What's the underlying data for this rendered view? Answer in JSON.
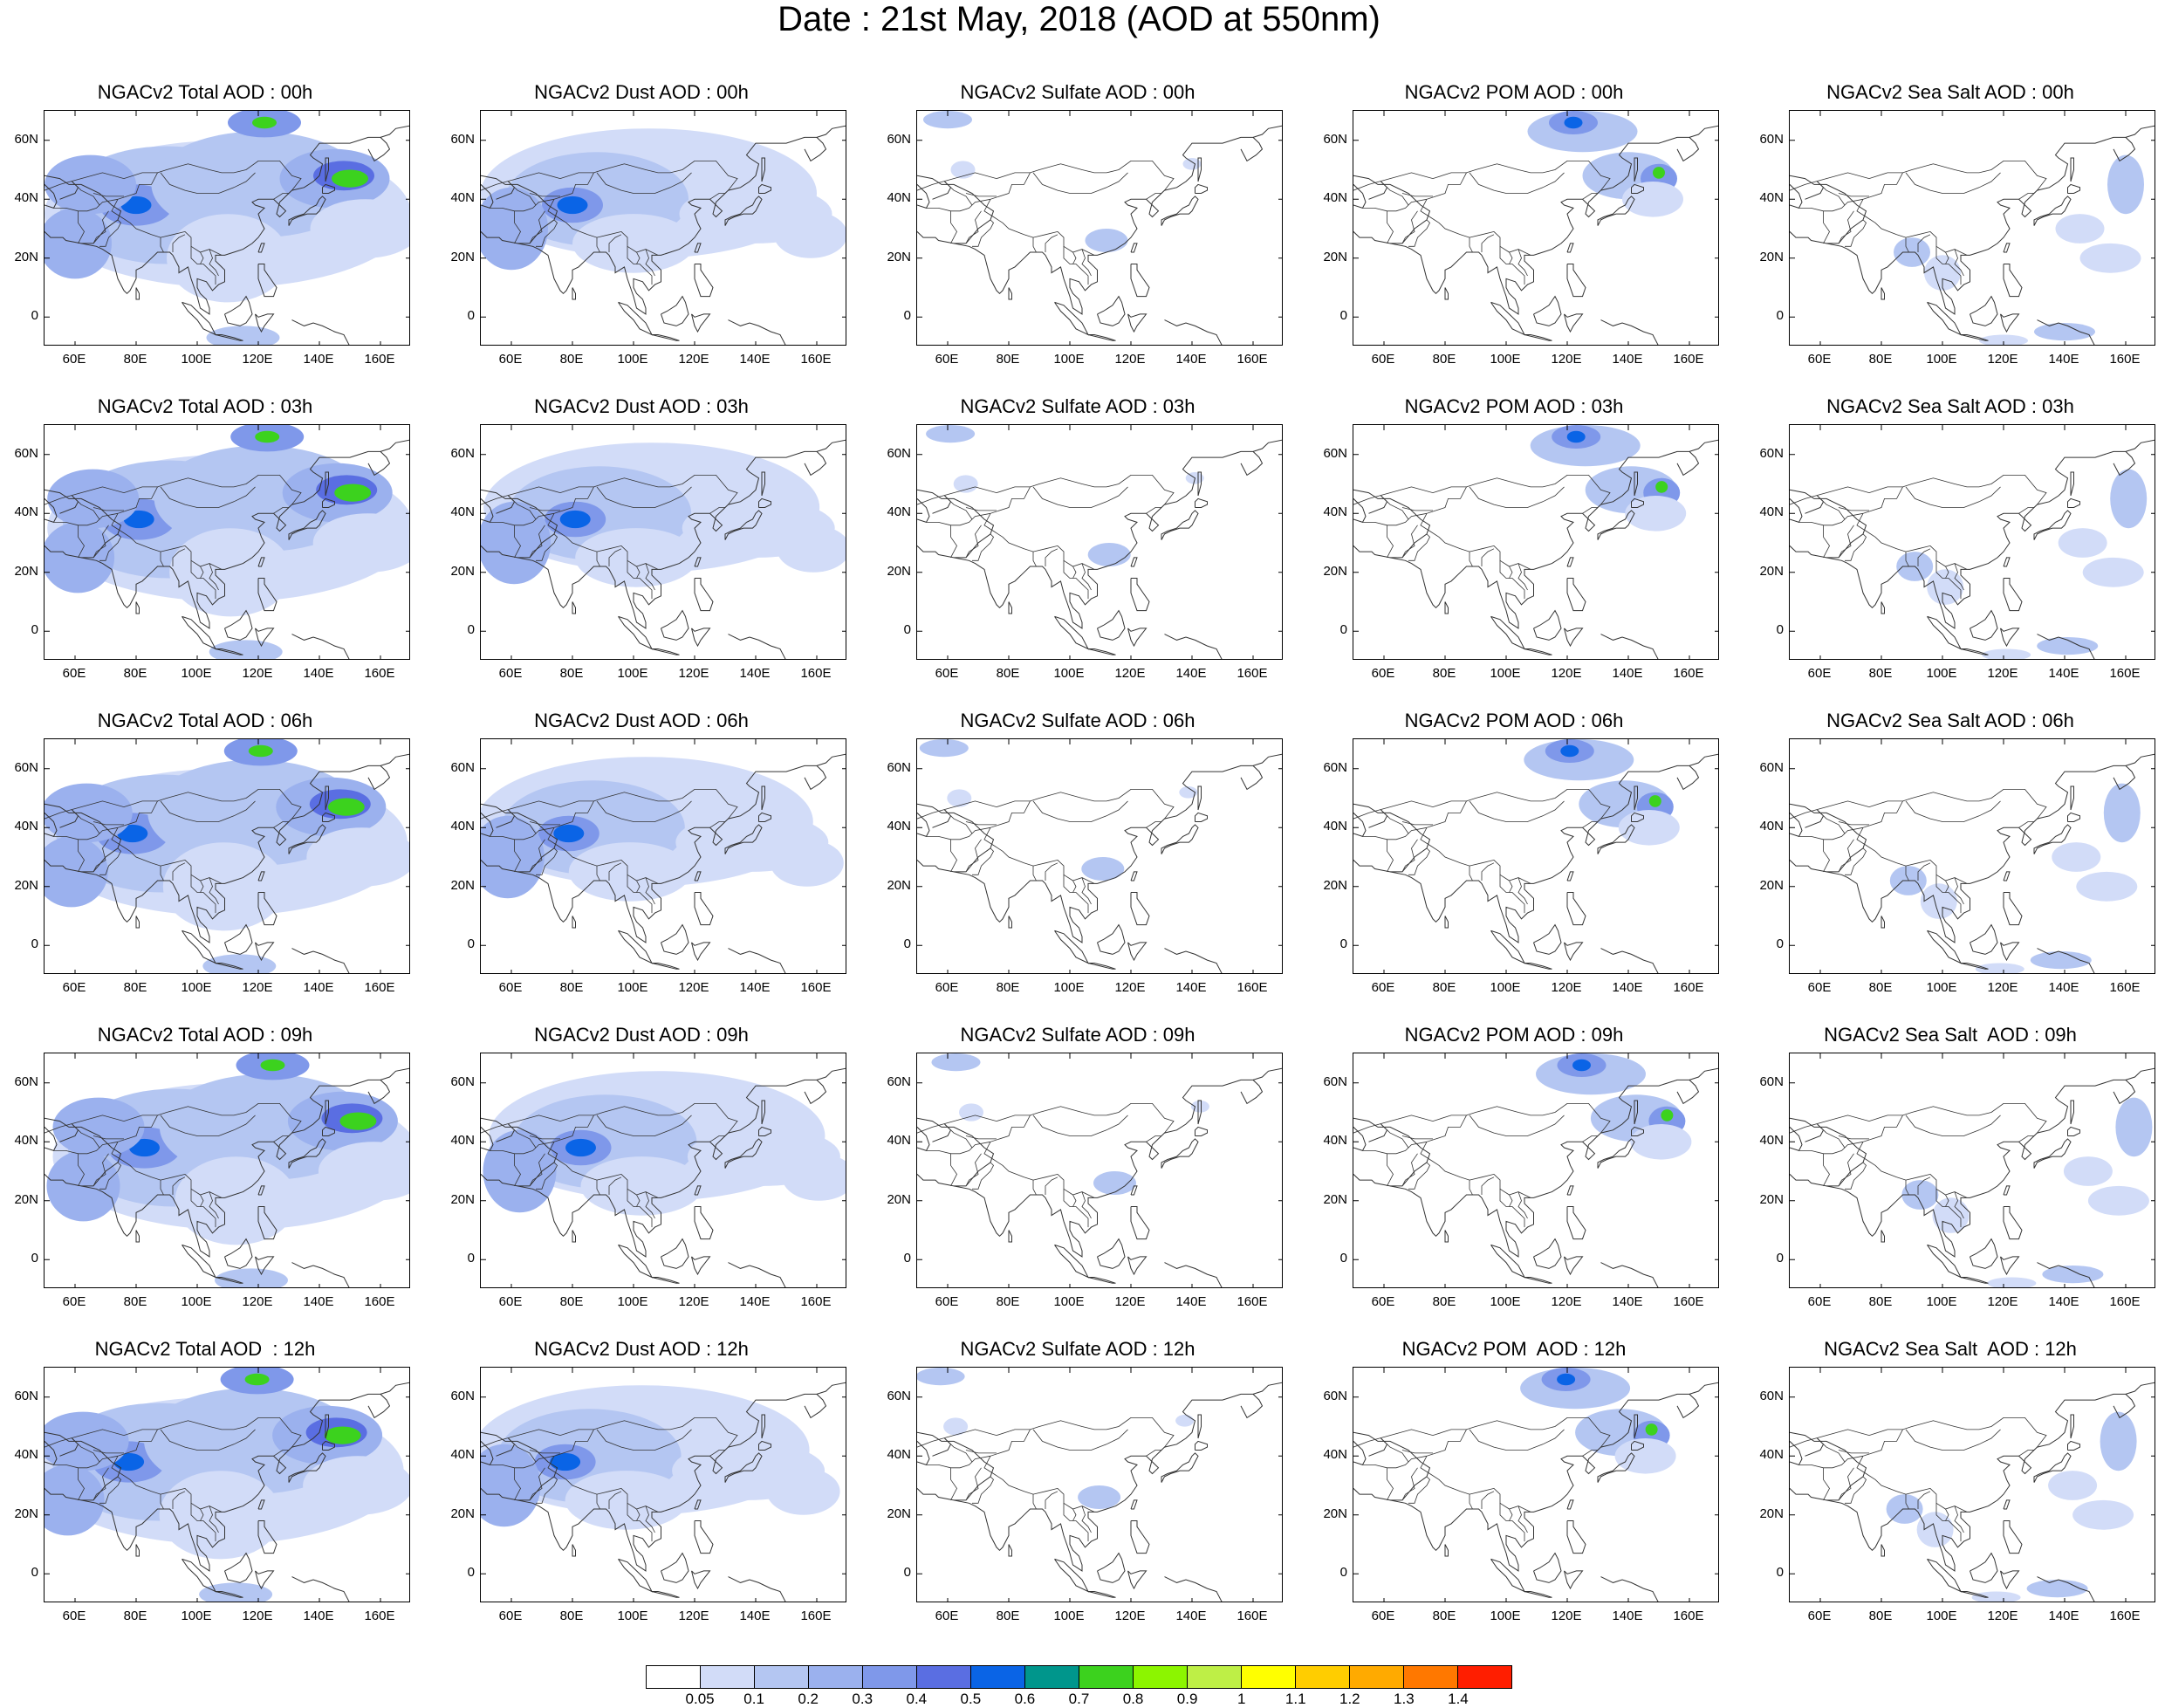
{
  "title": "Date : 21st May, 2018 (AOD at 550nm)",
  "axes": {
    "lat_ticks": [
      "60N",
      "40N",
      "20N",
      "0"
    ],
    "lat_values": [
      60,
      40,
      20,
      0
    ],
    "lon_ticks": [
      "60E",
      "80E",
      "100E",
      "120E",
      "140E",
      "160E"
    ],
    "lon_values": [
      60,
      80,
      100,
      120,
      140,
      160
    ],
    "lon_range": [
      50,
      170
    ],
    "lat_range": [
      -10,
      70
    ]
  },
  "panels": [
    {
      "title": "NGACv2 Total AOD : 00h",
      "species": "total",
      "hour": "00h"
    },
    {
      "title": "NGACv2 Dust AOD : 00h",
      "species": "dust",
      "hour": "00h"
    },
    {
      "title": "NGACv2 Sulfate AOD : 00h",
      "species": "sulfate",
      "hour": "00h"
    },
    {
      "title": "NGACv2 POM AOD : 00h",
      "species": "pom",
      "hour": "00h"
    },
    {
      "title": "NGACv2 Sea Salt AOD : 00h",
      "species": "seasalt",
      "hour": "00h"
    },
    {
      "title": "NGACv2 Total AOD : 03h",
      "species": "total",
      "hour": "03h"
    },
    {
      "title": "NGACv2 Dust AOD : 03h",
      "species": "dust",
      "hour": "03h"
    },
    {
      "title": "NGACv2 Sulfate AOD : 03h",
      "species": "sulfate",
      "hour": "03h"
    },
    {
      "title": "NGACv2 POM AOD : 03h",
      "species": "pom",
      "hour": "03h"
    },
    {
      "title": "NGACv2 Sea Salt AOD : 03h",
      "species": "seasalt",
      "hour": "03h"
    },
    {
      "title": "NGACv2 Total AOD : 06h",
      "species": "total",
      "hour": "06h"
    },
    {
      "title": "NGACv2 Dust AOD : 06h",
      "species": "dust",
      "hour": "06h"
    },
    {
      "title": "NGACv2 Sulfate AOD : 06h",
      "species": "sulfate",
      "hour": "06h"
    },
    {
      "title": "NGACv2 POM AOD : 06h",
      "species": "pom",
      "hour": "06h"
    },
    {
      "title": "NGACv2 Sea Salt AOD : 06h",
      "species": "seasalt",
      "hour": "06h"
    },
    {
      "title": "NGACv2 Total AOD : 09h",
      "species": "total",
      "hour": "09h"
    },
    {
      "title": "NGACv2 Dust AOD : 09h",
      "species": "dust",
      "hour": "09h"
    },
    {
      "title": "NGACv2 Sulfate AOD : 09h",
      "species": "sulfate",
      "hour": "09h"
    },
    {
      "title": "NGACv2 POM AOD : 09h",
      "species": "pom",
      "hour": "09h"
    },
    {
      "title": "NGACv2 Sea Salt  AOD : 09h",
      "species": "seasalt",
      "hour": "09h"
    },
    {
      "title": "NGACv2 Total AOD  : 12h",
      "species": "total",
      "hour": "12h"
    },
    {
      "title": "NGACv2 Dust AOD : 12h",
      "species": "dust",
      "hour": "12h"
    },
    {
      "title": "NGACv2 Sulfate AOD : 12h",
      "species": "sulfate",
      "hour": "12h"
    },
    {
      "title": "NGACv2 POM  AOD : 12h",
      "species": "pom",
      "hour": "12h"
    },
    {
      "title": "NGACv2 Sea Salt  AOD : 12h",
      "species": "seasalt",
      "hour": "12h"
    }
  ],
  "colorbar": {
    "labels": [
      "0.05",
      "0.1",
      "0.2",
      "0.3",
      "0.4",
      "0.5",
      "0.6",
      "0.7",
      "0.8",
      "0.9",
      "1",
      "1.1",
      "1.2",
      "1.3",
      "1.4"
    ],
    "colors": [
      "#ffffff",
      "#d2dcf8",
      "#b4c6f2",
      "#9bb1ee",
      "#7f98ea",
      "#5a6ee2",
      "#0a64e6",
      "#00968c",
      "#3cd21e",
      "#8cf500",
      "#beef46",
      "#ffff00",
      "#ffcd00",
      "#ffaa00",
      "#ff7800",
      "#ff1e00"
    ]
  },
  "map_colors": {
    "coastline": "#333333",
    "aod_levels": [
      "#d2dcf8",
      "#b4c6f2",
      "#9bb1ee",
      "#7f98ea",
      "#5a6ee2",
      "#0a64e6",
      "#3cd21e",
      "#8cf500"
    ]
  }
}
